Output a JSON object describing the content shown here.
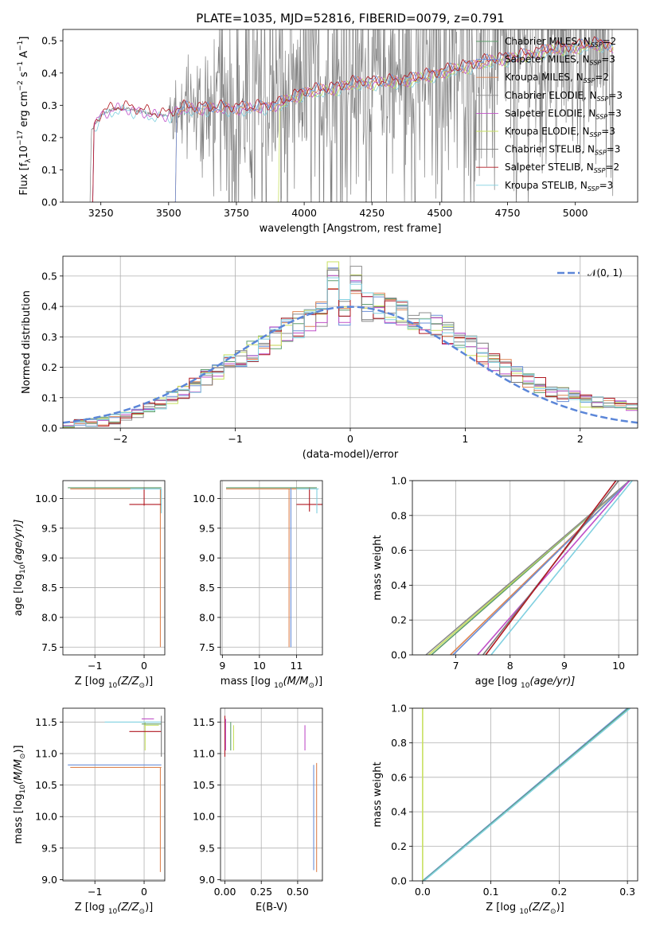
{
  "title": "PLATE=1035, MJD=52816, FIBERID=0079, z=0.791",
  "colors": {
    "Chabrier MILES": "#5f9e6e",
    "Salpeter MILES": "#6a8fd8",
    "Kroupa MILES": "#dd8452",
    "Chabrier ELODIE": "#8c8c8c",
    "Salpeter ELODIE": "#c050c8",
    "Kroupa ELODIE": "#c8e060",
    "Chabrier STELIB": "#7a7a7a",
    "Salpeter STELIB": "#b01820",
    "Kroupa STELIB": "#80d0e0",
    "normal": "#5b86d8",
    "data": "#808080"
  },
  "chart_data": [
    {
      "id": "spectrum",
      "type": "line",
      "xlabel": "wavelength [Angstrom, rest frame]",
      "ylabel": "Flux [f",
      "xlim": [
        3110,
        5230
      ],
      "ylim": [
        0,
        0.535
      ],
      "xticks": [
        3250,
        3500,
        3750,
        4000,
        4250,
        4500,
        4750,
        5000
      ],
      "yticks": [
        0.0,
        0.1,
        0.2,
        0.3,
        0.4,
        0.5
      ],
      "grid": false,
      "legend_placement": "top-right",
      "data_range_x": [
        3210,
        5140
      ],
      "legend": [
        {
          "name": "Chabrier MILES",
          "nssp": "2"
        },
        {
          "name": "Salpeter MILES",
          "nssp": "3"
        },
        {
          "name": "Kroupa MILES",
          "nssp": "2"
        },
        {
          "name": "Chabrier ELODIE",
          "nssp": "3"
        },
        {
          "name": "Salpeter ELODIE",
          "nssp": "3"
        },
        {
          "name": "Kroupa ELODIE",
          "nssp": "3"
        },
        {
          "name": "Chabrier STELIB",
          "nssp": "3"
        },
        {
          "name": "Salpeter STELIB",
          "nssp": "2"
        },
        {
          "name": "Kroupa STELIB",
          "nssp": "3"
        }
      ],
      "continuum": [
        [
          3210,
          0.0
        ],
        [
          3215,
          0.22
        ],
        [
          3250,
          0.27
        ],
        [
          3300,
          0.29
        ],
        [
          3350,
          0.29
        ],
        [
          3400,
          0.28
        ],
        [
          3450,
          0.27
        ],
        [
          3500,
          0.27
        ],
        [
          3550,
          0.29
        ],
        [
          3600,
          0.29
        ],
        [
          3700,
          0.29
        ],
        [
          3800,
          0.29
        ],
        [
          3900,
          0.3
        ],
        [
          4000,
          0.34
        ],
        [
          4100,
          0.35
        ],
        [
          4200,
          0.37
        ],
        [
          4300,
          0.37
        ],
        [
          4400,
          0.38
        ],
        [
          4500,
          0.4
        ],
        [
          4600,
          0.42
        ],
        [
          4700,
          0.44
        ],
        [
          4800,
          0.45
        ],
        [
          4900,
          0.47
        ],
        [
          5000,
          0.48
        ],
        [
          5100,
          0.49
        ],
        [
          5140,
          0.48
        ]
      ]
    },
    {
      "id": "residuals",
      "type": "line",
      "xlabel": "(data-model)/error",
      "ylabel": "Normed distribution",
      "xlim": [
        -2.5,
        2.5
      ],
      "ylim": [
        0,
        0.565
      ],
      "xticks": [
        -2,
        -1,
        0,
        1,
        2
      ],
      "yticks": [
        0.0,
        0.1,
        0.2,
        0.3,
        0.4,
        0.5
      ],
      "grid": true,
      "legend_placement": "top-right",
      "legend_label": "𝒩(0, 1)",
      "bin_width": 0.1,
      "hist_edges": [
        -2.5,
        2.5
      ],
      "hist_values": [
        0.012,
        0.015,
        0.018,
        0.022,
        0.03,
        0.04,
        0.05,
        0.065,
        0.08,
        0.1,
        0.12,
        0.14,
        0.165,
        0.19,
        0.21,
        0.23,
        0.255,
        0.275,
        0.3,
        0.32,
        0.34,
        0.355,
        0.37,
        0.38,
        0.385,
        0.39,
        0.4,
        0.395,
        0.385,
        0.375,
        0.36,
        0.345,
        0.33,
        0.31,
        0.29,
        0.27,
        0.245,
        0.22,
        0.2,
        0.18,
        0.16,
        0.14,
        0.125,
        0.11,
        0.1,
        0.09,
        0.085,
        0.08,
        0.08,
        0.075
      ],
      "peak_values": {
        "0.0": 0.52,
        "-0.1": 0.49,
        "0.1": 0.48
      }
    },
    {
      "id": "age-vs-Z",
      "type": "line",
      "xlabel": "Z [log",
      "ylabel": "age  [log",
      "xlim": [
        -1.65,
        0.42
      ],
      "ylim": [
        7.37,
        10.3
      ],
      "xticks": [
        -1,
        0
      ],
      "yticks": [
        7.5,
        8.0,
        8.5,
        9.0,
        9.5,
        10.0
      ],
      "grid": true,
      "segments": [
        {
          "series": "Chabrier MILES",
          "x": [
            -1.55,
            0.35
          ],
          "y": [
            10.18,
            10.18
          ]
        },
        {
          "series": "Kroupa MILES",
          "x": [
            -1.5,
            0.35
          ],
          "y": [
            10.16,
            10.16
          ]
        },
        {
          "series": "Kroupa MILES",
          "x": [
            0.33,
            0.33
          ],
          "y": [
            7.5,
            10.16
          ]
        },
        {
          "series": "Salpeter STELIB",
          "x": [
            -0.3,
            0.35
          ],
          "y": [
            9.9,
            9.9
          ]
        },
        {
          "series": "Salpeter STELIB",
          "x": [
            0.0,
            0.0
          ],
          "y": [
            9.88,
            10.18
          ]
        },
        {
          "series": "Kroupa STELIB",
          "x": [
            -0.28,
            0.35
          ],
          "y": [
            10.16,
            10.16
          ]
        },
        {
          "series": "Kroupa STELIB",
          "x": [
            0.35,
            0.35
          ],
          "y": [
            9.75,
            10.16
          ]
        }
      ]
    },
    {
      "id": "age-vs-mass",
      "type": "line",
      "xlabel": "mass [log",
      "ylabel": "",
      "xlim": [
        8.95,
        11.7
      ],
      "ylim": [
        7.37,
        10.3
      ],
      "xticks": [
        9,
        10,
        11
      ],
      "yticks": [
        7.5,
        8.0,
        8.5,
        9.0,
        9.5,
        10.0
      ],
      "grid": true,
      "segments": [
        {
          "series": "Chabrier MILES",
          "x": [
            9.1,
            11.55
          ],
          "y": [
            10.18,
            10.18
          ]
        },
        {
          "series": "Kroupa MILES",
          "x": [
            9.1,
            11.5
          ],
          "y": [
            10.16,
            10.16
          ]
        },
        {
          "series": "Kroupa MILES",
          "x": [
            10.8,
            10.8
          ],
          "y": [
            7.5,
            10.16
          ]
        },
        {
          "series": "Salpeter MILES",
          "x": [
            10.85,
            10.85
          ],
          "y": [
            7.5,
            10.18
          ]
        },
        {
          "series": "Salpeter STELIB",
          "x": [
            11.0,
            11.7
          ],
          "y": [
            9.9,
            9.9
          ]
        },
        {
          "series": "Salpeter STELIB",
          "x": [
            11.35,
            11.35
          ],
          "y": [
            9.78,
            10.18
          ]
        },
        {
          "series": "Kroupa STELIB",
          "x": [
            11.0,
            11.6
          ],
          "y": [
            10.16,
            10.16
          ]
        },
        {
          "series": "Kroupa STELIB",
          "x": [
            11.55,
            11.55
          ],
          "y": [
            9.75,
            10.16
          ]
        }
      ]
    },
    {
      "id": "cumulative-age",
      "type": "line",
      "xlabel": "age  [log",
      "ylabel": "mass weight",
      "xlim": [
        6.2,
        10.35
      ],
      "ylim": [
        0,
        1.0
      ],
      "xticks": [
        7,
        8,
        9,
        10
      ],
      "yticks": [
        0.0,
        0.2,
        0.4,
        0.6,
        0.8,
        1.0
      ],
      "grid": true,
      "lines": [
        {
          "series": "Chabrier MILES",
          "x": [
            6.55,
            10.2
          ],
          "y": [
            0,
            1
          ]
        },
        {
          "series": "Kroupa ELODIE",
          "x": [
            6.5,
            10.2
          ],
          "y": [
            0,
            1
          ]
        },
        {
          "series": "Chabrier ELODIE",
          "x": [
            6.45,
            10.2
          ],
          "y": [
            0,
            1
          ]
        },
        {
          "series": "Kroupa MILES",
          "x": [
            6.9,
            10.2
          ],
          "y": [
            0,
            1
          ]
        },
        {
          "series": "Salpeter MILES",
          "x": [
            6.95,
            10.2
          ],
          "y": [
            0,
            1
          ]
        },
        {
          "series": "Salpeter ELODIE",
          "x": [
            7.4,
            10.2
          ],
          "y": [
            0,
            1
          ]
        },
        {
          "series": "Chabrier STELIB",
          "x": [
            7.5,
            10.0
          ],
          "y": [
            0,
            1
          ]
        },
        {
          "series": "Salpeter STELIB",
          "x": [
            7.55,
            9.95
          ],
          "y": [
            0,
            1
          ]
        },
        {
          "series": "Kroupa STELIB",
          "x": [
            7.65,
            10.25
          ],
          "y": [
            0,
            1
          ]
        }
      ]
    },
    {
      "id": "mass-vs-Z",
      "type": "line",
      "xlabel": "Z [log",
      "ylabel": "mass [log",
      "xlim": [
        -1.65,
        0.42
      ],
      "ylim": [
        8.98,
        11.72
      ],
      "xticks": [
        -1,
        0
      ],
      "yticks": [
        9.0,
        9.5,
        10.0,
        10.5,
        11.0,
        11.5
      ],
      "grid": true,
      "segments": [
        {
          "series": "Salpeter MILES",
          "x": [
            -1.55,
            0.35
          ],
          "y": [
            10.82,
            10.82
          ]
        },
        {
          "series": "Kroupa MILES",
          "x": [
            -1.5,
            0.35
          ],
          "y": [
            10.78,
            10.78
          ]
        },
        {
          "series": "Kroupa MILES",
          "x": [
            0.33,
            0.33
          ],
          "y": [
            9.12,
            10.78
          ]
        },
        {
          "series": "Salpeter ELODIE",
          "x": [
            -0.05,
            0.2
          ],
          "y": [
            11.55,
            11.55
          ]
        },
        {
          "series": "Kroupa ELODIE",
          "x": [
            0.0,
            0.3
          ],
          "y": [
            11.45,
            11.45
          ]
        },
        {
          "series": "Kroupa ELODIE",
          "x": [
            0.02,
            0.02
          ],
          "y": [
            11.05,
            11.5
          ]
        },
        {
          "series": "Chabrier MILES",
          "x": [
            -0.05,
            0.35
          ],
          "y": [
            11.47,
            11.47
          ]
        },
        {
          "series": "Salpeter STELIB",
          "x": [
            -0.3,
            0.35
          ],
          "y": [
            11.35,
            11.35
          ]
        },
        {
          "series": "Kroupa STELIB",
          "x": [
            -0.8,
            0.35
          ],
          "y": [
            11.5,
            11.5
          ]
        },
        {
          "series": "Chabrier STELIB",
          "x": [
            0.35,
            0.35
          ],
          "y": [
            10.95,
            11.6
          ]
        }
      ]
    },
    {
      "id": "mass-vs-EBV",
      "type": "line",
      "xlabel": "E(B-V)",
      "ylabel": "",
      "xlim": [
        -0.03,
        0.67
      ],
      "ylim": [
        8.98,
        11.72
      ],
      "xticks": [
        0.0,
        0.25,
        0.5
      ],
      "xticklabels": [
        "0.00",
        "0.25",
        "0.50"
      ],
      "yticks": [
        9.0,
        9.5,
        10.0,
        10.5,
        11.0,
        11.5
      ],
      "grid": true,
      "segments": [
        {
          "series": "Salpeter STELIB",
          "x": [
            0.0,
            0.0
          ],
          "y": [
            10.95,
            11.6
          ]
        },
        {
          "series": "Salpeter ELODIE",
          "x": [
            0.005,
            0.005
          ],
          "y": [
            11.05,
            11.55
          ]
        },
        {
          "series": "Chabrier MILES",
          "x": [
            0.04,
            0.04
          ],
          "y": [
            11.05,
            11.5
          ]
        },
        {
          "series": "Kroupa ELODIE",
          "x": [
            0.06,
            0.06
          ],
          "y": [
            11.05,
            11.45
          ]
        },
        {
          "series": "Salpeter MILES",
          "x": [
            0.61,
            0.61
          ],
          "y": [
            9.15,
            10.82
          ]
        },
        {
          "series": "Kroupa MILES",
          "x": [
            0.63,
            0.63
          ],
          "y": [
            9.12,
            10.85
          ]
        },
        {
          "series": "Salpeter ELODIE",
          "x": [
            0.55,
            0.55
          ],
          "y": [
            11.05,
            11.45
          ]
        }
      ]
    },
    {
      "id": "cumulative-Z",
      "type": "line",
      "xlabel": "Z [log",
      "ylabel": "mass weight",
      "xlim": [
        -0.015,
        0.315
      ],
      "ylim": [
        0,
        1.0
      ],
      "xticks": [
        0.0,
        0.1,
        0.2,
        0.3
      ],
      "yticks": [
        0.0,
        0.2,
        0.4,
        0.6,
        0.8,
        1.0
      ],
      "grid": true,
      "lines": [
        {
          "series": "Kroupa ELODIE",
          "x": [
            0.0,
            0.0
          ],
          "y": [
            0,
            1
          ]
        },
        {
          "series": "Salpeter MILES",
          "x": [
            0.0,
            0.3
          ],
          "y": [
            0,
            1
          ]
        },
        {
          "series": "Chabrier MILES",
          "x": [
            0.001,
            0.302
          ],
          "y": [
            0,
            1
          ]
        },
        {
          "series": "Kroupa STELIB",
          "x": [
            0.002,
            0.304
          ],
          "y": [
            0,
            1
          ]
        }
      ]
    }
  ],
  "text": {
    "spec_ylabel_unit": "10",
    "spec_ylabel_rest": " erg cm",
    "spec_ylabel_end": " s",
    "spec_ylabel_end2": " A",
    "spec_ylabel_close": "]",
    "lambda": "λ",
    "minus17": "−17",
    "minus2": "−2",
    "minus1": "−1",
    "log10": "10",
    "zsun_open": "(Z/Z",
    "zsun_close": ")]",
    "sun": "⊙",
    "age_open": "(age/yr)]",
    "age_close": "",
    "mass_open": "(M/M",
    "mass_close": ")]",
    "nssp_prefix": ", N",
    "nssp_sub": "SSP",
    "nssp_eq": "="
  }
}
